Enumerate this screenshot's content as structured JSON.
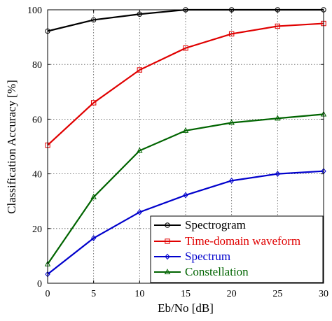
{
  "chart_data": {
    "type": "line",
    "title": "",
    "xlabel": "Eb/No [dB]",
    "ylabel": "Classification Accuracy [%]",
    "xlim": [
      0,
      30
    ],
    "ylim": [
      0,
      100
    ],
    "x_ticks": [
      0,
      5,
      10,
      15,
      20,
      25,
      30
    ],
    "y_ticks": [
      0,
      20,
      40,
      60,
      80,
      100
    ],
    "grid": true,
    "grid_style": "dotted",
    "legend_position": "bottom-right",
    "x": [
      0,
      5,
      10,
      15,
      20,
      25,
      30
    ],
    "series": [
      {
        "name": "Spectrogram",
        "color": "#000000",
        "marker": "circle",
        "values": [
          92.2,
          96.3,
          98.4,
          100,
          100,
          100,
          100
        ]
      },
      {
        "name": "Time-domain waveform",
        "color": "#e00000",
        "marker": "square",
        "values": [
          50.5,
          66,
          78,
          86,
          91.2,
          94,
          95
        ]
      },
      {
        "name": "Spectrum",
        "color": "#0000cc",
        "marker": "diamond",
        "values": [
          3.3,
          16.5,
          26,
          32.2,
          37.5,
          40,
          41
        ]
      },
      {
        "name": "Constellation",
        "color": "#006400",
        "marker": "triangle",
        "values": [
          7,
          31.5,
          48.5,
          55.8,
          58.7,
          60.3,
          61.8
        ]
      }
    ]
  }
}
